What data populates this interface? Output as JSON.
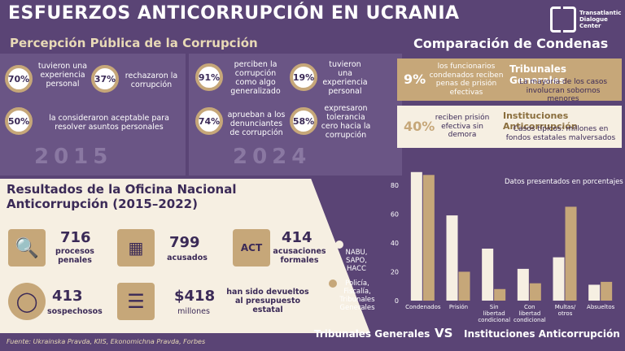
{
  "title": "ESFUERZOS ANTICORRUPCIÓN EN UCRANIA",
  "logo": {
    "line1": "Transatlantic",
    "line2": "Dialogue",
    "line3": "Center"
  },
  "perception": {
    "title": "Percepción Pública de la Corrupción",
    "y2015": {
      "year": "2015",
      "stats": [
        {
          "pct": "70%",
          "text": "tuvieron una experiencia personal"
        },
        {
          "pct": "37%",
          "text": "rechazaron la corrupción"
        },
        {
          "pct": "50%",
          "text": "la consideraron aceptable para resolver asuntos personales"
        }
      ]
    },
    "y2024": {
      "year": "2024",
      "stats": [
        {
          "pct": "91%",
          "text": "perciben la corrupción como algo generalizado"
        },
        {
          "pct": "19%",
          "text": "tuvieron una experiencia personal"
        },
        {
          "pct": "74%",
          "text": "aprueban a los denunciantes de corrupción"
        },
        {
          "pct": "58%",
          "text": "expresaron tolerancia cero hacia la corrupción"
        }
      ]
    }
  },
  "comparison": {
    "title": "Comparación de Condenas",
    "general": {
      "pct": "9%",
      "text": "los funcionarios condenados reciben penas de prisión efectivas",
      "heading": "Tribunales Generales",
      "sub": "La mayoría de los casos involucran sobornos menores"
    },
    "anticorr": {
      "pct": "40%",
      "text": "reciben prisión efectiva sin demora",
      "heading": "Instituciones Anticorrupción",
      "sub": "Casos típicos: millones en fondos estatales malversados"
    }
  },
  "results": {
    "title": "Resultados de la Oficina Nacional Anticorrupción (2015–2022)",
    "items": [
      {
        "num": "716",
        "label": "procesos penales",
        "icon": "document-search-icon"
      },
      {
        "num": "799",
        "label": "acusados",
        "icon": "prison-bars-icon"
      },
      {
        "num": "414",
        "label": "acusaciones formales",
        "icon": "act-document-icon"
      },
      {
        "num": "413",
        "label": "sospechosos",
        "icon": "target-person-icon"
      },
      {
        "num": "$418",
        "sub": "millones",
        "label": "han sido devueltos al presupuesto estatal",
        "icon": "coins-icon"
      }
    ]
  },
  "source": "Fuente: Ukrainska Pravda, KIIS, Ekonomichna Pravda, Forbes",
  "legend": {
    "anticorr": "NABU, SAPO, HACC",
    "general": "Policía, Fiscalía, Tribunales Generales"
  },
  "bottom": {
    "left": "Tribunales Generales",
    "vs": "VS",
    "right": "Instituciones Anticorrupción"
  },
  "colors": {
    "purple": "#5a4475",
    "tan": "#c6a779",
    "cream": "#f6efe2",
    "anticorr_bar": "#f6efe2",
    "general_bar": "#c6a779"
  },
  "chart_data": {
    "type": "bar",
    "title": "",
    "note": "Datos presentados en porcentajes (%)",
    "categories": [
      "Condenados",
      "Prisión",
      "Sin libertad condicional",
      "Con libertad condicional",
      "Multas/ otros",
      "Absueltos"
    ],
    "series": [
      {
        "name": "NABU, SAPO, HACC",
        "values": [
          89,
          59,
          36,
          22,
          30,
          11
        ]
      },
      {
        "name": "Policía, Fiscalía, Tribunales Generales",
        "values": [
          87,
          20,
          8,
          12,
          65,
          13
        ]
      }
    ],
    "yticks": [
      0,
      20,
      40,
      60,
      80
    ],
    "ylim": [
      0,
      90
    ]
  }
}
